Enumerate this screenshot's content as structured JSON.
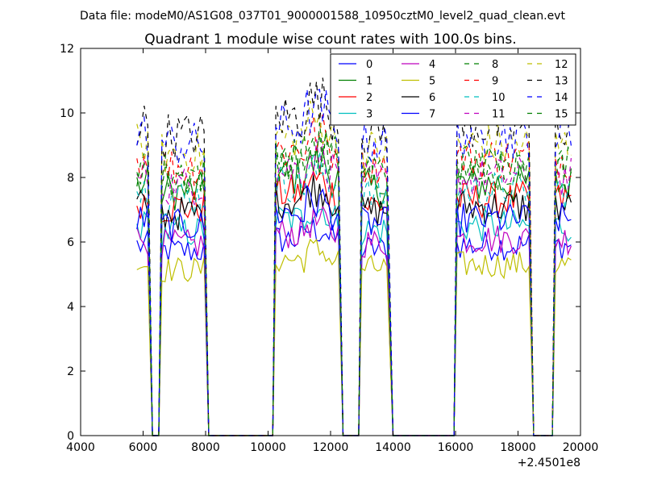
{
  "figure": {
    "suptitle": "Data file: modeM0/AS1G08_037T01_9000001588_10950cztM0_level2_quad_clean.evt",
    "title": "Quadrant 1 module wise count rates with 100.0s bins.",
    "x_offset_label": "+2.4501e8"
  },
  "chart_data": {
    "type": "line",
    "title": "Quadrant 1 module wise count rates with 100.0s bins.",
    "xlabel": "",
    "ylabel": "",
    "xlim": [
      4000,
      20000
    ],
    "ylim": [
      0,
      12
    ],
    "x_offset": 245010000,
    "xticks": [
      4000,
      6000,
      8000,
      10000,
      12000,
      14000,
      16000,
      18000,
      20000
    ],
    "xtick_labels": [
      "4000",
      "6000",
      "8000",
      "10000",
      "12000",
      "14000",
      "16000",
      "18000",
      "20000"
    ],
    "yticks": [
      0,
      2,
      4,
      6,
      8,
      10,
      12
    ],
    "ytick_labels": [
      "0",
      "2",
      "4",
      "6",
      "8",
      "10",
      "12"
    ],
    "grid": false,
    "legend_position": "top-right",
    "legend_columns": 4,
    "segments": [
      {
        "start": 5800,
        "end": 6150,
        "drop_to": 6300,
        "bins": 4
      },
      {
        "start": 6600,
        "end": 7950,
        "drop_to": 8100,
        "bins": 14
      },
      {
        "start": 10250,
        "end": 12250,
        "drop_to": 12400,
        "bins": 21
      },
      {
        "start": 13000,
        "end": 13800,
        "drop_to": 14000,
        "bins": 9
      },
      {
        "start": 16050,
        "end": 18350,
        "drop_to": 18500,
        "bins": 24
      },
      {
        "start": 19200,
        "end": 19700,
        "drop_to": 19700,
        "bins": 6
      }
    ],
    "series": [
      {
        "name": "0",
        "color": "#0000ff",
        "dash": "solid",
        "level": 5.9
      },
      {
        "name": "1",
        "color": "#008000",
        "dash": "solid",
        "level": 7.8
      },
      {
        "name": "2",
        "color": "#ff0000",
        "dash": "solid",
        "level": 7.3
      },
      {
        "name": "3",
        "color": "#00bfbf",
        "dash": "solid",
        "level": 6.5
      },
      {
        "name": "4",
        "color": "#bf00bf",
        "dash": "solid",
        "level": 6.1
      },
      {
        "name": "5",
        "color": "#bfbf00",
        "dash": "solid",
        "level": 5.3
      },
      {
        "name": "6",
        "color": "#000000",
        "dash": "solid",
        "level": 7.1
      },
      {
        "name": "7",
        "color": "#0000ff",
        "dash": "solid",
        "level": 6.7
      },
      {
        "name": "8",
        "color": "#008000",
        "dash": "dashed",
        "level": 8.2
      },
      {
        "name": "9",
        "color": "#ff0000",
        "dash": "dashed",
        "level": 8.6
      },
      {
        "name": "10",
        "color": "#00bfbf",
        "dash": "dashed",
        "level": 7.6
      },
      {
        "name": "11",
        "color": "#bf00bf",
        "dash": "dashed",
        "level": 8.0
      },
      {
        "name": "12",
        "color": "#bfbf00",
        "dash": "dashed",
        "level": 9.0
      },
      {
        "name": "13",
        "color": "#000000",
        "dash": "dashed",
        "level": 9.6
      },
      {
        "name": "14",
        "color": "#0000ff",
        "dash": "dashed",
        "level": 9.3
      },
      {
        "name": "15",
        "color": "#008000",
        "dash": "dashed",
        "level": 8.4
      }
    ]
  }
}
